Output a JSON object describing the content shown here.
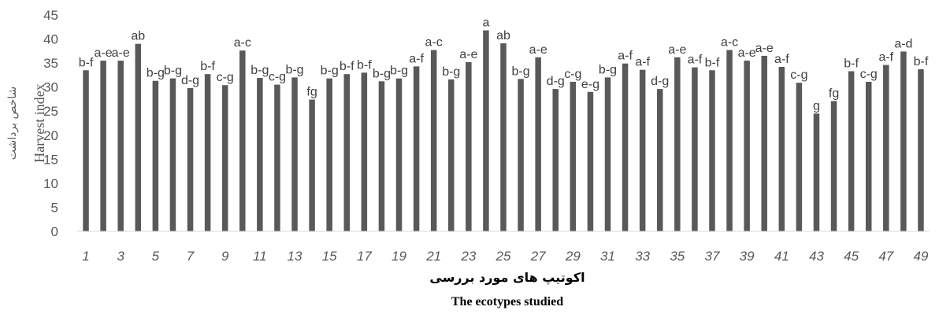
{
  "chart_data": {
    "type": "bar",
    "title": "",
    "xlabel_fa": "اکوتیپ های مورد بررسی",
    "xlabel_en": "The ecotypes studied",
    "ylabel_fa": "شاخص برداشت",
    "ylabel_en": "Harvest index",
    "ylim": [
      0,
      45
    ],
    "yticks": [
      0,
      5,
      10,
      15,
      20,
      25,
      30,
      35,
      40,
      45
    ],
    "xtick_labels": [
      "1",
      "3",
      "5",
      "7",
      "9",
      "11",
      "13",
      "15",
      "17",
      "19",
      "21",
      "23",
      "25",
      "27",
      "29",
      "31",
      "33",
      "35",
      "37",
      "39",
      "41",
      "43",
      "45",
      "47",
      "49"
    ],
    "categories": [
      "1",
      "2",
      "3",
      "4",
      "5",
      "6",
      "7",
      "8",
      "9",
      "10",
      "11",
      "12",
      "13",
      "14",
      "15",
      "16",
      "17",
      "18",
      "19",
      "20",
      "21",
      "22",
      "23",
      "24",
      "25",
      "26",
      "27",
      "28",
      "29",
      "30",
      "31",
      "32",
      "33",
      "34",
      "35",
      "36",
      "37",
      "38",
      "39",
      "40",
      "41",
      "42",
      "43",
      "44",
      "45",
      "46",
      "47",
      "48",
      "49"
    ],
    "values": [
      33.5,
      35.5,
      35.5,
      39.0,
      31.3,
      31.8,
      29.8,
      32.7,
      30.4,
      37.6,
      31.9,
      30.5,
      32.0,
      27.4,
      31.8,
      32.7,
      33.0,
      31.2,
      31.8,
      34.3,
      37.7,
      31.6,
      35.2,
      41.8,
      39.1,
      31.7,
      36.2,
      29.6,
      31.1,
      29.0,
      32.0,
      34.9,
      33.6,
      29.6,
      36.2,
      34.1,
      33.5,
      37.7,
      35.5,
      36.5,
      34.2,
      30.9,
      24.5,
      27.1,
      33.3,
      31.1,
      34.6,
      37.4,
      33.7
    ],
    "bar_labels": [
      "b-f",
      "a-e",
      "a-e",
      "ab",
      "b-g",
      "b-g",
      "d-g",
      "b-f",
      "c-g",
      "a-c",
      "b-g",
      "c-g",
      "b-g",
      "fg",
      "b-g",
      "b-f",
      "b-f",
      "b-g",
      "b-g",
      "a-f",
      "a-c",
      "b-g",
      "a-e",
      "a",
      "ab",
      "b-g",
      "a-e",
      "d-g",
      "c-g",
      "e-g",
      "b-g",
      "a-f",
      "a-f",
      "d-g",
      "a-e",
      "a-f",
      "b-f",
      "a-c",
      "a-e",
      "a-e",
      "a-f",
      "c-g",
      "g",
      "fg",
      "b-f",
      "c-g",
      "a-f",
      "a-d",
      "b-f"
    ],
    "bar_color": "#595959",
    "grid": false,
    "legend": "none"
  }
}
